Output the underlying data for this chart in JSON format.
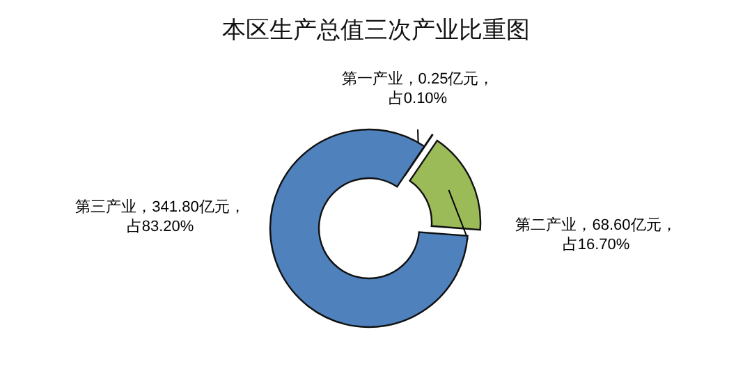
{
  "chart_data": {
    "type": "donut",
    "title": "本区生产总值三次产业比重图",
    "categories": [
      "第一产业",
      "第二产业",
      "第三产业"
    ],
    "values": [
      0.25,
      68.6,
      341.8
    ],
    "colors": [
      "#9bbb59",
      "#9bbb59",
      "#4f81bd"
    ],
    "value_labels": [
      "，0.25亿元，",
      "，68.60亿元，",
      "，341.80亿元，"
    ],
    "annotations": [
      "占0.10%",
      "占16.70%",
      "占83.20%"
    ]
  }
}
